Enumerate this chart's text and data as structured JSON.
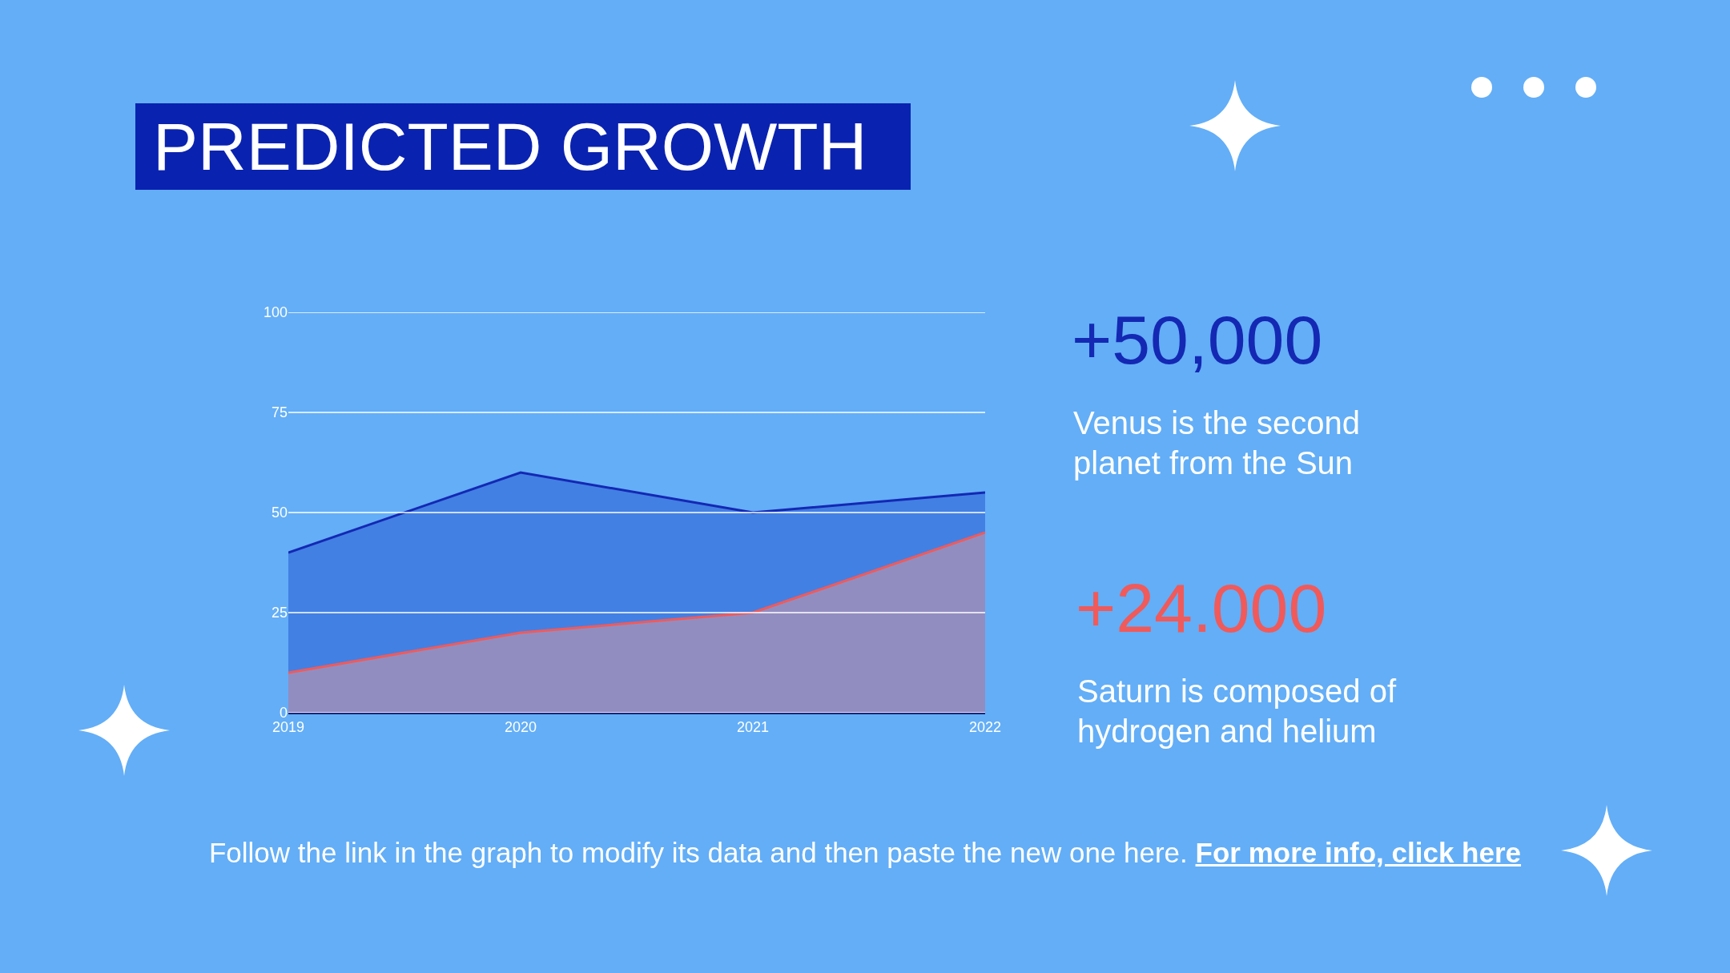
{
  "chart_data": {
    "type": "area",
    "title": "PREDICTED GROWTH",
    "categories": [
      "2019",
      "2020",
      "2021",
      "2022"
    ],
    "series": [
      {
        "color": "#1428b4",
        "values": [
          40,
          60,
          50,
          55
        ]
      },
      {
        "color": "#f05a5a",
        "values": [
          10,
          20,
          25,
          45
        ]
      }
    ],
    "ylim": [
      0,
      100
    ],
    "yticks": [
      0,
      25,
      50,
      75,
      100
    ],
    "grid": "y",
    "annotations": [
      "+50,000",
      "Venus is the second planet from the Sun",
      "+24.000",
      "Saturn is composed of hydrogen and helium",
      "Follow the link in the graph to modify its data and then paste the new one here.",
      "For more info, click here"
    ]
  }
}
